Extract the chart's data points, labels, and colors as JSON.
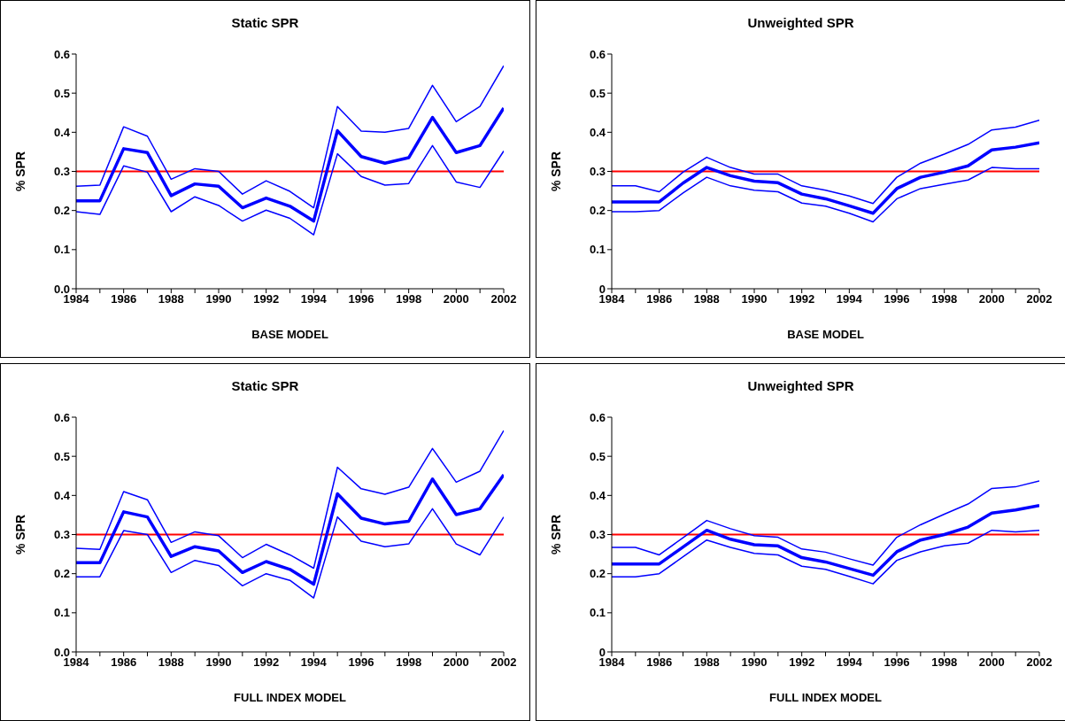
{
  "chart_data": [
    {
      "type": "line",
      "title": "Static SPR",
      "xlabel": "BASE MODEL",
      "ylabel": "% SPR",
      "x": [
        1984,
        1985,
        1986,
        1987,
        1988,
        1989,
        1990,
        1991,
        1992,
        1993,
        1994,
        1995,
        1996,
        1997,
        1998,
        1999,
        2000,
        2001,
        2002
      ],
      "xlim": [
        1984,
        2002
      ],
      "xticks": [
        1984,
        {
          "value": 1985,
          "label": null
        },
        1986,
        {
          "value": 1987,
          "label": null
        },
        1988,
        {
          "value": 1989,
          "label": null
        },
        1990,
        {
          "value": 1991,
          "label": null
        },
        1992,
        {
          "value": 1993,
          "label": null
        },
        1994,
        {
          "value": 1995,
          "label": null
        },
        1996,
        {
          "value": 1997,
          "label": null
        },
        1998,
        {
          "value": 1999,
          "label": null
        },
        2000,
        {
          "value": 2001,
          "label": null
        },
        2002
      ],
      "ylim": [
        0,
        0.6
      ],
      "yticks": [
        {
          "value": 0,
          "label": "0.0"
        },
        0.1,
        0.2,
        0.3,
        0.4,
        0.5,
        0.6
      ],
      "grid": false,
      "legend": false,
      "marker": "none",
      "line_style": "solid",
      "series": [
        {
          "color": "#0000ff",
          "values": [
            0.225,
            0.225,
            0.358,
            0.348,
            0.238,
            0.268,
            0.262,
            0.207,
            0.232,
            0.211,
            0.173,
            0.404,
            0.338,
            0.321,
            0.335,
            0.438,
            0.348,
            0.366,
            0.462
          ]
        },
        {
          "color": "#0000ff",
          "values": [
            0.262,
            0.265,
            0.414,
            0.39,
            0.28,
            0.307,
            0.3,
            0.242,
            0.276,
            0.249,
            0.207,
            0.466,
            0.403,
            0.4,
            0.41,
            0.52,
            0.427,
            0.466,
            0.57
          ]
        },
        {
          "color": "#0000ff",
          "values": [
            0.197,
            0.19,
            0.314,
            0.298,
            0.197,
            0.235,
            0.213,
            0.173,
            0.201,
            0.18,
            0.138,
            0.345,
            0.287,
            0.265,
            0.269,
            0.366,
            0.273,
            0.259,
            0.352
          ]
        }
      ],
      "ref_lines": [
        {
          "axis": "y",
          "value": 0.3,
          "color": "#ff0000"
        }
      ]
    },
    {
      "type": "line",
      "title": "Unweighted SPR",
      "xlabel": "BASE MODEL",
      "ylabel": "% SPR",
      "x": [
        1984,
        1985,
        1986,
        1987,
        1988,
        1989,
        1990,
        1991,
        1992,
        1993,
        1994,
        1995,
        1996,
        1997,
        1998,
        1999,
        2000,
        2001,
        2002
      ],
      "xlim": [
        1984,
        2002
      ],
      "xticks": [
        1984,
        {
          "value": 1985,
          "label": null
        },
        1986,
        {
          "value": 1987,
          "label": null
        },
        1988,
        {
          "value": 1989,
          "label": null
        },
        1990,
        {
          "value": 1991,
          "label": null
        },
        1992,
        {
          "value": 1993,
          "label": null
        },
        1994,
        {
          "value": 1995,
          "label": null
        },
        1996,
        {
          "value": 1997,
          "label": null
        },
        1998,
        {
          "value": 1999,
          "label": null
        },
        2000,
        {
          "value": 2001,
          "label": null
        },
        2002
      ],
      "ylim": [
        0,
        0.6
      ],
      "yticks": [
        0,
        0.1,
        0.2,
        0.3,
        0.4,
        0.5,
        0.6
      ],
      "grid": false,
      "legend": false,
      "marker": "none",
      "line_style": "solid",
      "series": [
        {
          "color": "#0000ff",
          "values": [
            0.222,
            0.222,
            0.222,
            0.27,
            0.31,
            0.289,
            0.275,
            0.271,
            0.242,
            0.23,
            0.212,
            0.193,
            0.256,
            0.285,
            0.298,
            0.314,
            0.355,
            0.362,
            0.373
          ]
        },
        {
          "color": "#0000ff",
          "values": [
            0.263,
            0.263,
            0.248,
            0.298,
            0.336,
            0.31,
            0.293,
            0.293,
            0.263,
            0.252,
            0.237,
            0.218,
            0.285,
            0.321,
            0.344,
            0.369,
            0.406,
            0.413,
            0.431
          ]
        },
        {
          "color": "#0000ff",
          "values": [
            0.197,
            0.197,
            0.2,
            0.245,
            0.285,
            0.263,
            0.252,
            0.248,
            0.219,
            0.211,
            0.193,
            0.171,
            0.23,
            0.256,
            0.267,
            0.278,
            0.31,
            0.307,
            0.307
          ]
        }
      ],
      "ref_lines": [
        {
          "axis": "y",
          "value": 0.3,
          "color": "#ff0000"
        }
      ]
    },
    {
      "type": "line",
      "title": "Static SPR",
      "xlabel": "FULL INDEX MODEL",
      "ylabel": "% SPR",
      "x": [
        1984,
        1985,
        1986,
        1987,
        1988,
        1989,
        1990,
        1991,
        1992,
        1993,
        1994,
        1995,
        1996,
        1997,
        1998,
        1999,
        2000,
        2001,
        2002
      ],
      "xlim": [
        1984,
        2002
      ],
      "xticks": [
        1984,
        {
          "value": 1985,
          "label": null
        },
        1986,
        {
          "value": 1987,
          "label": null
        },
        1988,
        {
          "value": 1989,
          "label": null
        },
        1990,
        {
          "value": 1991,
          "label": null
        },
        1992,
        {
          "value": 1993,
          "label": null
        },
        1994,
        {
          "value": 1995,
          "label": null
        },
        1996,
        {
          "value": 1997,
          "label": null
        },
        1998,
        {
          "value": 1999,
          "label": null
        },
        2000,
        {
          "value": 2001,
          "label": null
        },
        2002
      ],
      "ylim": [
        0,
        0.6
      ],
      "yticks": [
        {
          "value": 0,
          "label": "0.0"
        },
        0.1,
        0.2,
        0.3,
        0.4,
        0.5,
        0.6
      ],
      "grid": false,
      "legend": false,
      "marker": "none",
      "line_style": "solid",
      "series": [
        {
          "color": "#0000ff",
          "values": [
            0.228,
            0.228,
            0.358,
            0.345,
            0.244,
            0.269,
            0.258,
            0.203,
            0.231,
            0.211,
            0.173,
            0.404,
            0.342,
            0.327,
            0.334,
            0.442,
            0.351,
            0.366,
            0.453
          ]
        },
        {
          "color": "#0000ff",
          "values": [
            0.265,
            0.262,
            0.41,
            0.389,
            0.28,
            0.307,
            0.297,
            0.241,
            0.275,
            0.248,
            0.214,
            0.472,
            0.417,
            0.403,
            0.421,
            0.52,
            0.434,
            0.462,
            0.566
          ]
        },
        {
          "color": "#0000ff",
          "values": [
            0.192,
            0.192,
            0.31,
            0.3,
            0.203,
            0.234,
            0.221,
            0.169,
            0.2,
            0.183,
            0.138,
            0.345,
            0.283,
            0.269,
            0.276,
            0.366,
            0.276,
            0.248,
            0.345
          ]
        }
      ],
      "ref_lines": [
        {
          "axis": "y",
          "value": 0.3,
          "color": "#ff0000"
        }
      ]
    },
    {
      "type": "line",
      "title": "Unweighted SPR",
      "xlabel": "FULL INDEX MODEL",
      "ylabel": "% SPR",
      "x": [
        1984,
        1985,
        1986,
        1987,
        1988,
        1989,
        1990,
        1991,
        1992,
        1993,
        1994,
        1995,
        1996,
        1997,
        1998,
        1999,
        2000,
        2001,
        2002
      ],
      "xlim": [
        1984,
        2002
      ],
      "xticks": [
        1984,
        {
          "value": 1985,
          "label": null
        },
        1986,
        {
          "value": 1987,
          "label": null
        },
        1988,
        {
          "value": 1989,
          "label": null
        },
        1990,
        {
          "value": 1991,
          "label": null
        },
        1992,
        {
          "value": 1993,
          "label": null
        },
        1994,
        {
          "value": 1995,
          "label": null
        },
        1996,
        {
          "value": 1997,
          "label": null
        },
        1998,
        {
          "value": 1999,
          "label": null
        },
        2000,
        {
          "value": 2001,
          "label": null
        },
        2002
      ],
      "ylim": [
        0,
        0.6
      ],
      "yticks": [
        0,
        0.1,
        0.2,
        0.3,
        0.4,
        0.5,
        0.6
      ],
      "grid": false,
      "legend": false,
      "marker": "none",
      "line_style": "solid",
      "series": [
        {
          "color": "#0000ff",
          "values": [
            0.225,
            0.225,
            0.225,
            0.268,
            0.311,
            0.288,
            0.274,
            0.271,
            0.241,
            0.23,
            0.213,
            0.196,
            0.256,
            0.286,
            0.3,
            0.319,
            0.355,
            0.363,
            0.374
          ]
        },
        {
          "color": "#0000ff",
          "values": [
            0.267,
            0.267,
            0.248,
            0.292,
            0.336,
            0.315,
            0.297,
            0.293,
            0.263,
            0.255,
            0.238,
            0.222,
            0.293,
            0.325,
            0.352,
            0.378,
            0.418,
            0.422,
            0.437
          ]
        },
        {
          "color": "#0000ff",
          "values": [
            0.192,
            0.192,
            0.2,
            0.243,
            0.286,
            0.267,
            0.252,
            0.248,
            0.219,
            0.211,
            0.193,
            0.174,
            0.234,
            0.256,
            0.271,
            0.278,
            0.311,
            0.307,
            0.311
          ]
        }
      ],
      "ref_lines": [
        {
          "axis": "y",
          "value": 0.3,
          "color": "#ff0000"
        }
      ]
    }
  ]
}
